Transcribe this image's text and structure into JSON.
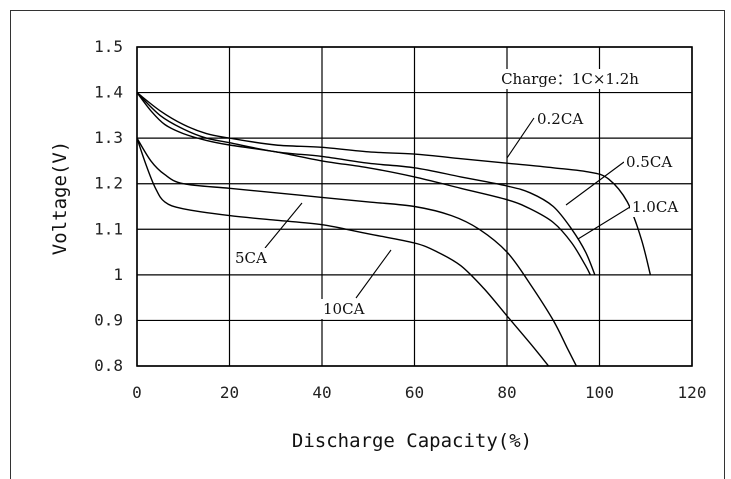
{
  "chart_data": {
    "type": "line",
    "title": "",
    "xlabel": "Discharge Capacity(%)",
    "ylabel": "Voltage(V)",
    "xlim": [
      0,
      120
    ],
    "ylim": [
      0.8,
      1.5
    ],
    "x_ticks": [
      "0",
      "20",
      "40",
      "60",
      "80",
      "100",
      "120"
    ],
    "y_ticks": [
      "0.8",
      "0.9",
      "1",
      "1.1",
      "1.2",
      "1.3",
      "1.4",
      "1.5"
    ],
    "grid": true,
    "annotation": "Charge：1C×1.2h",
    "series": [
      {
        "name": "0.2CA",
        "points": [
          [
            0,
            1.4
          ],
          [
            5,
            1.36
          ],
          [
            10,
            1.33
          ],
          [
            15,
            1.31
          ],
          [
            20,
            1.3
          ],
          [
            30,
            1.285
          ],
          [
            40,
            1.28
          ],
          [
            50,
            1.27
          ],
          [
            60,
            1.265
          ],
          [
            70,
            1.255
          ],
          [
            80,
            1.245
          ],
          [
            90,
            1.235
          ],
          [
            98,
            1.225
          ],
          [
            102,
            1.21
          ],
          [
            106,
            1.16
          ],
          [
            109,
            1.08
          ],
          [
            111,
            1.0
          ]
        ]
      },
      {
        "name": "0.5CA",
        "points": [
          [
            0,
            1.4
          ],
          [
            5,
            1.35
          ],
          [
            10,
            1.32
          ],
          [
            15,
            1.3
          ],
          [
            20,
            1.29
          ],
          [
            30,
            1.27
          ],
          [
            40,
            1.26
          ],
          [
            50,
            1.245
          ],
          [
            60,
            1.235
          ],
          [
            70,
            1.215
          ],
          [
            80,
            1.195
          ],
          [
            85,
            1.18
          ],
          [
            90,
            1.15
          ],
          [
            94,
            1.1
          ],
          [
            97,
            1.05
          ],
          [
            99,
            1.0
          ]
        ]
      },
      {
        "name": "1.0CA",
        "points": [
          [
            0,
            1.4
          ],
          [
            3,
            1.36
          ],
          [
            6,
            1.33
          ],
          [
            10,
            1.31
          ],
          [
            15,
            1.295
          ],
          [
            20,
            1.285
          ],
          [
            30,
            1.27
          ],
          [
            40,
            1.25
          ],
          [
            50,
            1.235
          ],
          [
            60,
            1.215
          ],
          [
            70,
            1.19
          ],
          [
            80,
            1.165
          ],
          [
            85,
            1.145
          ],
          [
            90,
            1.115
          ],
          [
            94,
            1.07
          ],
          [
            97,
            1.02
          ],
          [
            98,
            1.0
          ]
        ]
      },
      {
        "name": "5CA",
        "points": [
          [
            0,
            1.3
          ],
          [
            3,
            1.25
          ],
          [
            6,
            1.22
          ],
          [
            10,
            1.2
          ],
          [
            20,
            1.19
          ],
          [
            30,
            1.18
          ],
          [
            40,
            1.17
          ],
          [
            50,
            1.16
          ],
          [
            60,
            1.15
          ],
          [
            68,
            1.13
          ],
          [
            74,
            1.1
          ],
          [
            80,
            1.05
          ],
          [
            85,
            0.98
          ],
          [
            90,
            0.9
          ],
          [
            93,
            0.84
          ],
          [
            95,
            0.8
          ]
        ]
      },
      {
        "name": "10CA",
        "points": [
          [
            0,
            1.3
          ],
          [
            2,
            1.24
          ],
          [
            4,
            1.19
          ],
          [
            6,
            1.16
          ],
          [
            10,
            1.145
          ],
          [
            20,
            1.13
          ],
          [
            30,
            1.12
          ],
          [
            40,
            1.11
          ],
          [
            50,
            1.09
          ],
          [
            60,
            1.07
          ],
          [
            65,
            1.05
          ],
          [
            70,
            1.02
          ],
          [
            75,
            0.97
          ],
          [
            80,
            0.91
          ],
          [
            85,
            0.85
          ],
          [
            89,
            0.8
          ]
        ]
      }
    ]
  }
}
